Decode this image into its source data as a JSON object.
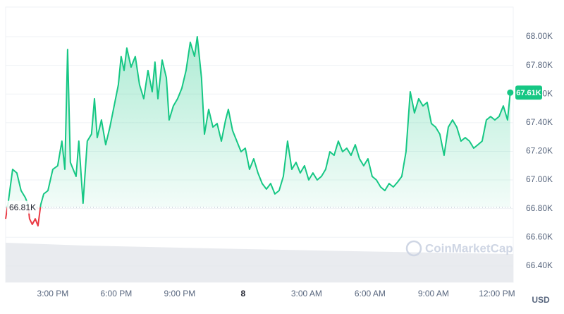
{
  "chart_data": {
    "type": "line",
    "x": [
      12.77,
      12.9,
      13.1,
      13.3,
      13.5,
      13.7,
      13.83,
      13.9,
      14.03,
      14.17,
      14.3,
      14.43,
      14.57,
      14.77,
      15,
      15.23,
      15.43,
      15.57,
      15.7,
      15.83,
      16.1,
      16.23,
      16.43,
      16.63,
      16.83,
      16.97,
      17.1,
      17.3,
      17.5,
      17.7,
      17.9,
      18.1,
      18.23,
      18.37,
      18.5,
      18.7,
      18.9,
      19.1,
      19.3,
      19.5,
      19.7,
      19.83,
      19.97,
      20.17,
      20.37,
      20.5,
      20.7,
      20.9,
      21.1,
      21.3,
      21.5,
      21.7,
      21.83,
      22.03,
      22.17,
      22.37,
      22.57,
      22.77,
      22.97,
      23.17,
      23.3,
      23.5,
      23.7,
      23.9,
      24.1,
      24.3,
      24.5,
      24.7,
      24.9,
      25.1,
      25.3,
      25.5,
      25.7,
      25.9,
      26.1,
      26.3,
      26.5,
      26.7,
      26.9,
      27.1,
      27.3,
      27.5,
      27.7,
      27.9,
      28.1,
      28.3,
      28.5,
      28.7,
      28.9,
      29.1,
      29.3,
      29.5,
      29.7,
      29.9,
      30.1,
      30.3,
      30.5,
      30.7,
      30.9,
      31.1,
      31.3,
      31.5,
      31.7,
      31.9,
      32.1,
      32.3,
      32.5,
      32.7,
      32.9,
      33.1,
      33.3,
      33.5,
      33.7,
      33.9,
      34.1,
      34.3,
      34.5,
      34.7,
      34.9,
      35.1,
      35.3,
      35.5,
      35.7,
      35.9,
      36.1,
      36.3,
      36.5,
      36.63
    ],
    "series": [
      {
        "name": "Price",
        "color": "#16c784",
        "down_color": "#ea3943",
        "values": [
          66729,
          66852,
          67074,
          67049,
          66926,
          66877,
          66828,
          66729,
          66690,
          66729,
          66680,
          66828,
          66902,
          66926,
          67074,
          67099,
          67271,
          67074,
          67911,
          67123,
          67025,
          67271,
          66837,
          67271,
          67320,
          67567,
          67296,
          67419,
          67246,
          67369,
          67517,
          67665,
          67862,
          67764,
          67921,
          67788,
          67862,
          67665,
          67567,
          67764,
          67616,
          67823,
          67567,
          67837,
          67714,
          67419,
          67517,
          67567,
          67640,
          67764,
          67961,
          67862,
          68000,
          67714,
          67320,
          67493,
          67369,
          67394,
          67271,
          67419,
          67493,
          67345,
          67271,
          67197,
          67222,
          67074,
          67148,
          67049,
          66975,
          66936,
          66975,
          66902,
          66926,
          67025,
          67271,
          67074,
          67123,
          67049,
          67099,
          67000,
          67049,
          67000,
          67025,
          67074,
          67197,
          67172,
          67271,
          67197,
          67222,
          67172,
          67246,
          67148,
          67099,
          67148,
          67025,
          67000,
          66951,
          66926,
          66975,
          66951,
          66985,
          67025,
          67197,
          67616,
          67468,
          67567,
          67517,
          67542,
          67394,
          67369,
          67320,
          67172,
          67369,
          67419,
          67369,
          67271,
          67296,
          67271,
          67222,
          67246,
          67271,
          67419,
          67443,
          67419,
          67443,
          67517,
          67419,
          67610
        ]
      }
    ],
    "xlim": [
      12.77,
      36.77
    ],
    "xticks": [
      {
        "value": 15,
        "label": "3:00 PM"
      },
      {
        "value": 18,
        "label": "6:00 PM"
      },
      {
        "value": 21,
        "label": "9:00 PM"
      },
      {
        "value": 24,
        "label": "8"
      },
      {
        "value": 27,
        "label": "3:00 AM"
      },
      {
        "value": 30,
        "label": "6:00 AM"
      },
      {
        "value": 33,
        "label": "9:00 AM"
      },
      {
        "value": 36,
        "label": "12:00 PM"
      }
    ],
    "ylim": [
      66286,
      68207
    ],
    "yticks": [
      {
        "value": 66400,
        "label": "66.40K"
      },
      {
        "value": 66600,
        "label": "66.60K"
      },
      {
        "value": 66800,
        "label": "66.80K"
      },
      {
        "value": 67000,
        "label": "67.00K"
      },
      {
        "value": 67200,
        "label": "67.20K"
      },
      {
        "value": 67400,
        "label": "67.40K"
      },
      {
        "value": 67600,
        "label": "67.60K"
      },
      {
        "value": 67800,
        "label": "67.80K"
      },
      {
        "value": 68000,
        "label": "68.00K"
      }
    ],
    "reference": {
      "value": 66810,
      "label": "66.81K"
    },
    "current_label": "67.61K",
    "currency": "USD",
    "watermark": "CoinMarketCap",
    "grid": true
  }
}
